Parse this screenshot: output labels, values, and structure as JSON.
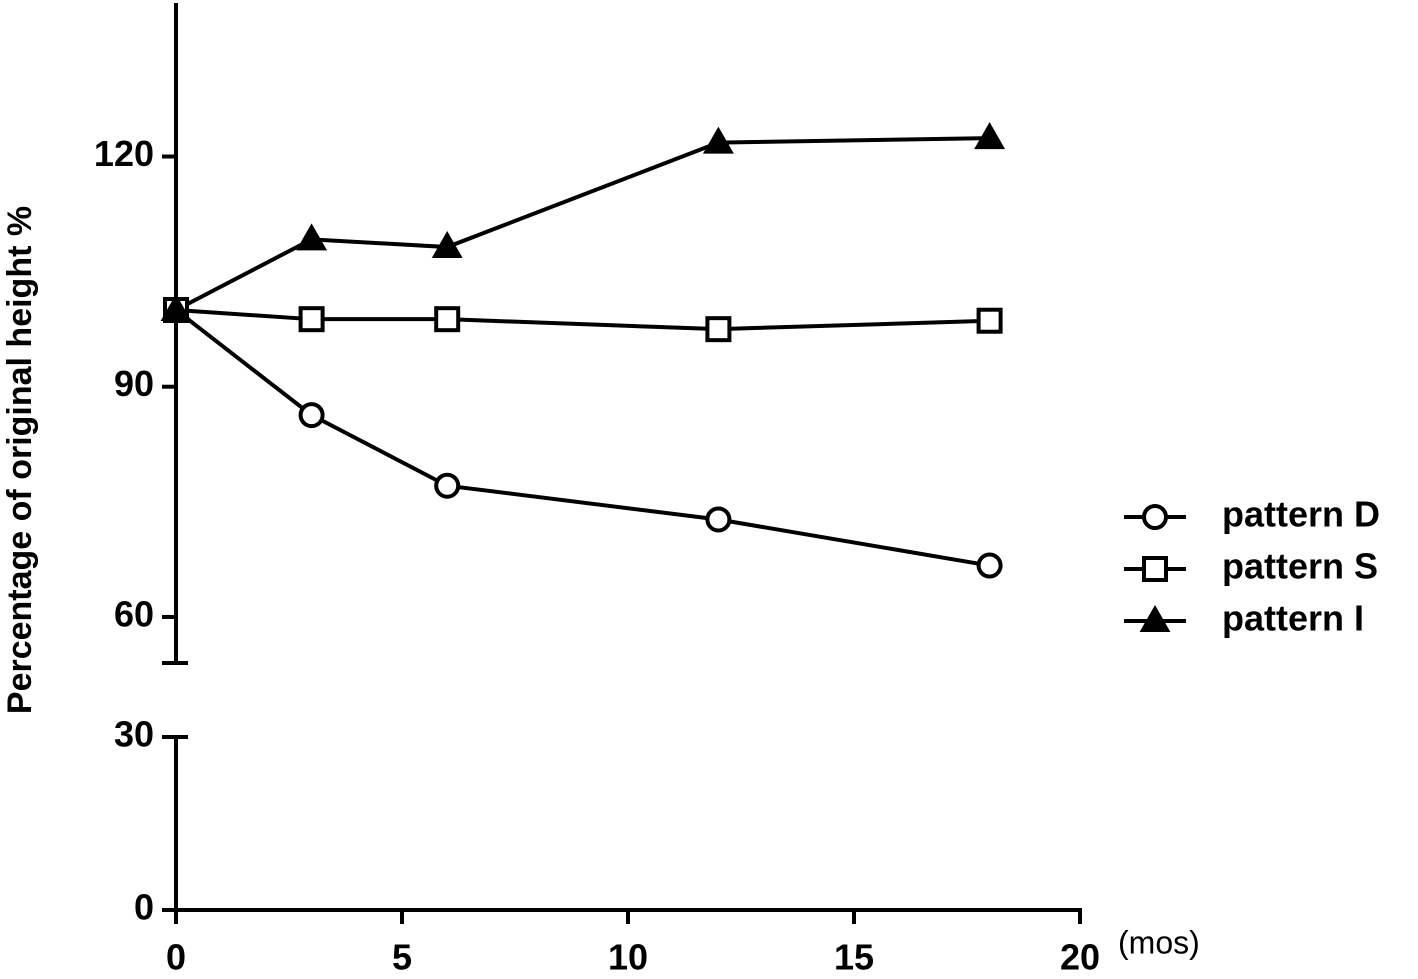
{
  "chart_data": {
    "type": "line",
    "ylabel": "Percentage of original height %",
    "x_unit_label": "(mos)",
    "x": [
      0,
      3,
      6,
      12,
      18
    ],
    "xlim": [
      0,
      20
    ],
    "xticks": [
      0,
      5,
      10,
      15,
      20
    ],
    "y_segments": [
      {
        "ylim": [
          0,
          30
        ],
        "yticks": [
          0,
          30
        ]
      },
      {
        "ylim": [
          54,
          140
        ],
        "yticks": [
          60,
          90,
          120
        ]
      }
    ],
    "series": [
      {
        "name": "pattern D",
        "color": "#000000",
        "marker": "circle",
        "marker_fill": "#ffffff",
        "values": [
          100,
          86.3,
          77.1,
          72.7,
          66.7
        ]
      },
      {
        "name": "pattern S",
        "color": "#000000",
        "marker": "square",
        "marker_fill": "#ffffff",
        "values": [
          100,
          98.8,
          98.8,
          97.5,
          98.6
        ]
      },
      {
        "name": "pattern I",
        "color": "#000000",
        "marker": "triangle",
        "marker_fill": "#000000",
        "values": [
          100,
          109.2,
          108.2,
          121.8,
          122.4
        ]
      }
    ],
    "legend": "right"
  }
}
